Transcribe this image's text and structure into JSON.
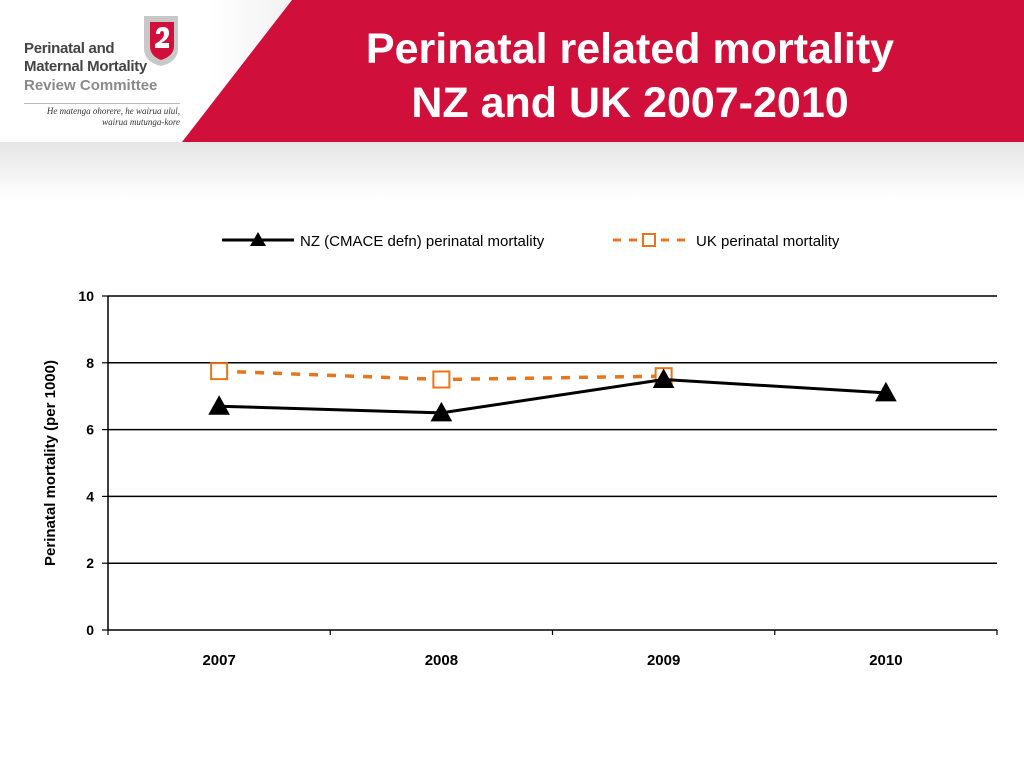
{
  "header": {
    "logo": {
      "line1": "Perinatal and",
      "line2": "Maternal Mortality",
      "line3": "Review Committee",
      "tagline_line1": "He matenga ohorere, he wairua ulul,",
      "tagline_line2": "wairua mutunga-kore"
    },
    "title_line1": "Perinatal related mortality",
    "title_line2": "NZ and UK 2007-2010",
    "accent_color": "#d0103a"
  },
  "chart_data": {
    "type": "line",
    "title": "",
    "xlabel": "",
    "ylabel": "Perinatal mortality (per 1000)",
    "categories": [
      "2007",
      "2008",
      "2009",
      "2010"
    ],
    "ylim": [
      0,
      10
    ],
    "yticks": [
      0,
      2,
      4,
      6,
      8,
      10
    ],
    "grid": true,
    "legend_position": "top",
    "series": [
      {
        "name": "NZ (CMACE defn) perinatal mortality",
        "values": [
          6.7,
          6.5,
          7.5,
          7.1
        ],
        "color": "#000000",
        "marker": "triangle",
        "line_style": "solid"
      },
      {
        "name": "UK perinatal mortality",
        "values": [
          7.75,
          7.5,
          7.6,
          null
        ],
        "color": "#e8751a",
        "marker": "square-open",
        "line_style": "dashed"
      }
    ]
  }
}
